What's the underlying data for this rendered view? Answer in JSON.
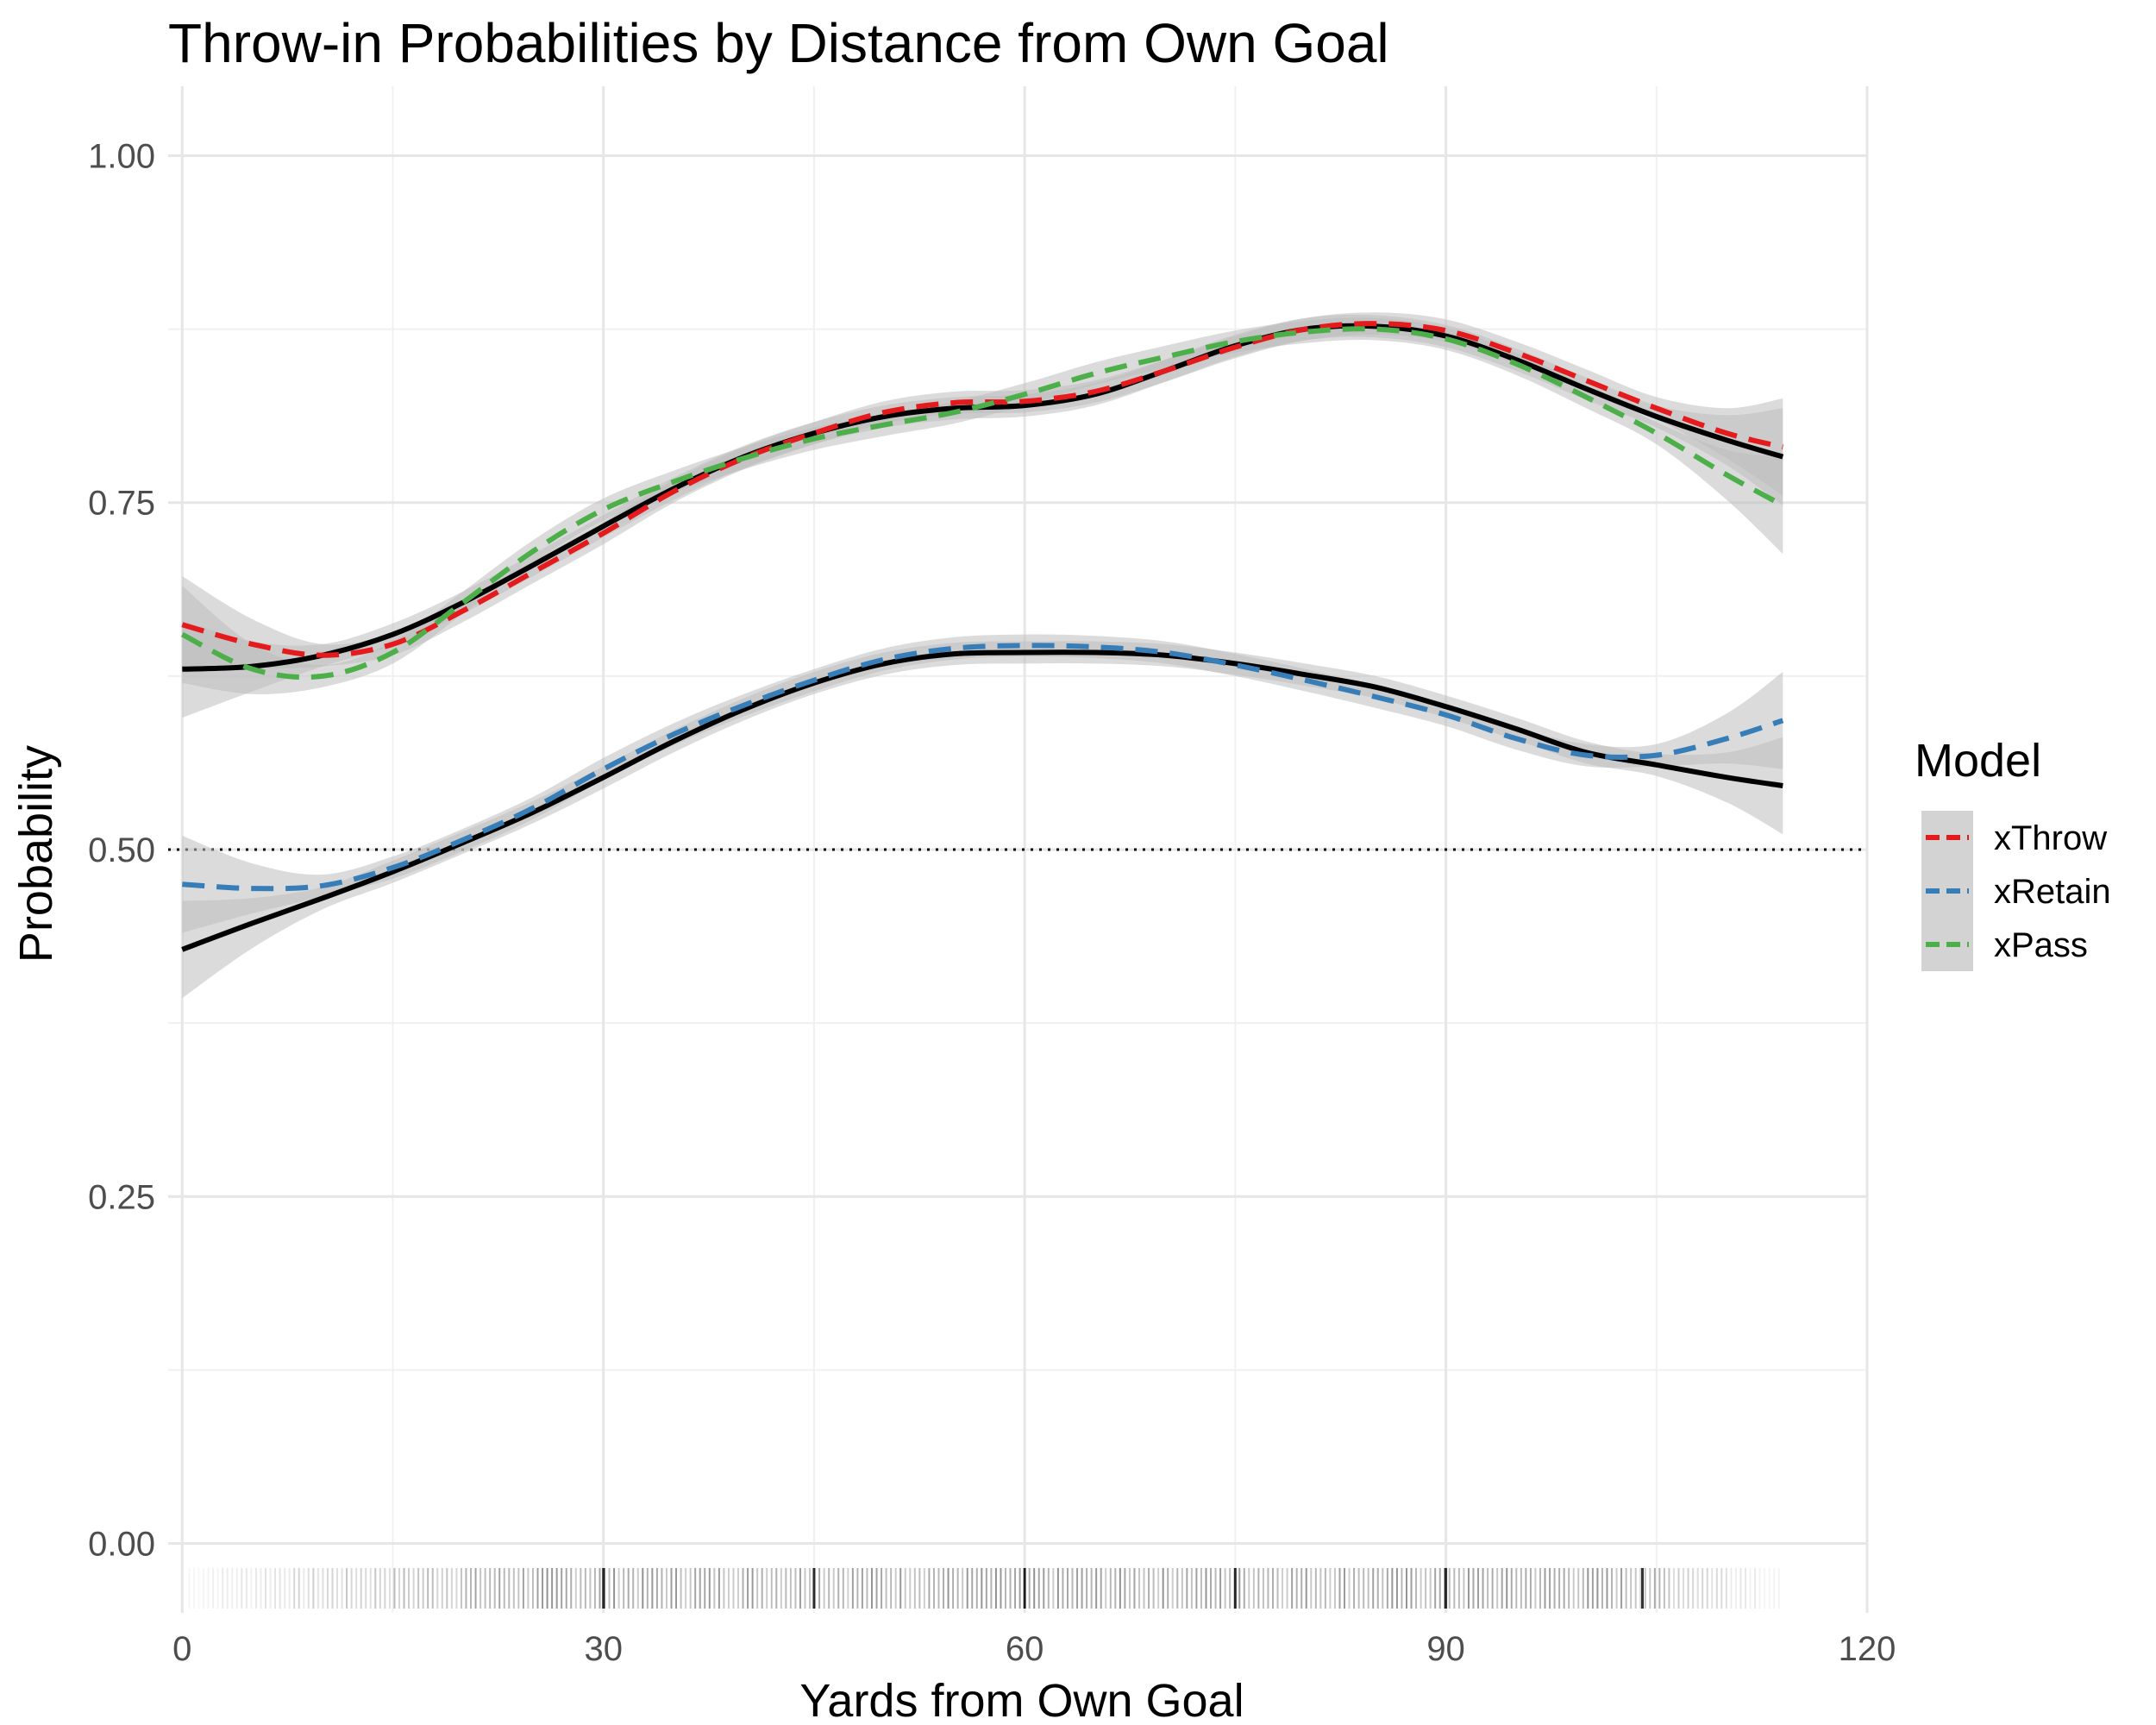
{
  "chart_data": {
    "type": "line",
    "title": "Throw-in Probabilities by Distance from Own Goal",
    "xlabel": "Yards from Own Goal",
    "ylabel": "Probability",
    "xlim": [
      -1,
      120
    ],
    "ylim": [
      -0.05,
      1.05
    ],
    "x_ticks": [
      0,
      30,
      60,
      90,
      120
    ],
    "x_tick_labels": [
      "0",
      "30",
      "60",
      "90",
      "120"
    ],
    "y_ticks": [
      0.0,
      0.25,
      0.5,
      0.75,
      1.0
    ],
    "y_tick_labels": [
      "0.00",
      "0.25",
      "0.50",
      "0.75",
      "1.00"
    ],
    "grid": true,
    "reference_line": {
      "y": 0.5,
      "style": "dotted"
    },
    "legend": {
      "title": "Model",
      "position": "right",
      "entries": [
        {
          "name": "xThrow",
          "color": "#e41a1c"
        },
        {
          "name": "xRetain",
          "color": "#377eb8"
        },
        {
          "name": "xPass",
          "color": "#4daf4a"
        }
      ]
    },
    "x": [
      0,
      5,
      10,
      15,
      20,
      25,
      30,
      35,
      40,
      45,
      50,
      55,
      60,
      65,
      70,
      75,
      80,
      85,
      90,
      95,
      100,
      105,
      110,
      114
    ],
    "series": [
      {
        "name": "xThrow",
        "style": "dashed",
        "color": "#e41a1c",
        "values": [
          0.662,
          0.648,
          0.64,
          0.648,
          0.672,
          0.7,
          0.728,
          0.758,
          0.782,
          0.8,
          0.815,
          0.822,
          0.823,
          0.83,
          0.845,
          0.862,
          0.875,
          0.879,
          0.874,
          0.858,
          0.838,
          0.818,
          0.8,
          0.79
        ]
      },
      {
        "name": "xRetain",
        "style": "dashed",
        "color": "#377eb8",
        "values": [
          0.475,
          0.472,
          0.474,
          0.487,
          0.507,
          0.53,
          0.558,
          0.583,
          0.604,
          0.622,
          0.637,
          0.645,
          0.647,
          0.646,
          0.642,
          0.633,
          0.622,
          0.61,
          0.597,
          0.58,
          0.568,
          0.568,
          0.58,
          0.593
        ]
      },
      {
        "name": "xPass",
        "style": "dashed",
        "color": "#4daf4a",
        "values": [
          0.655,
          0.63,
          0.625,
          0.642,
          0.678,
          0.715,
          0.745,
          0.765,
          0.782,
          0.796,
          0.806,
          0.815,
          0.828,
          0.843,
          0.855,
          0.866,
          0.873,
          0.875,
          0.868,
          0.85,
          0.826,
          0.8,
          0.77,
          0.748
        ]
      },
      {
        "name": "",
        "style": "solid",
        "color": "#000000",
        "values": [
          0.63,
          0.632,
          0.64,
          0.655,
          0.678,
          0.705,
          0.733,
          0.76,
          0.783,
          0.8,
          0.812,
          0.818,
          0.82,
          0.828,
          0.845,
          0.863,
          0.875,
          0.877,
          0.87,
          0.853,
          0.832,
          0.812,
          0.795,
          0.783
        ]
      },
      {
        "name": "",
        "style": "solid",
        "color": "#000000",
        "values": [
          0.428,
          0.447,
          0.465,
          0.484,
          0.505,
          0.527,
          0.552,
          0.578,
          0.601,
          0.62,
          0.634,
          0.641,
          0.642,
          0.642,
          0.64,
          0.634,
          0.626,
          0.617,
          0.603,
          0.587,
          0.57,
          0.561,
          0.552,
          0.546
        ]
      }
    ]
  }
}
